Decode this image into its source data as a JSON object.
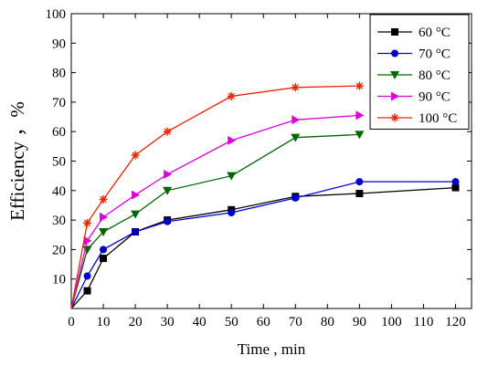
{
  "chart_data": {
    "type": "line",
    "xlabel": "Time , min",
    "ylabel": "Efficiency ，%",
    "xlim": [
      0,
      125
    ],
    "ylim": [
      0,
      100
    ],
    "x_ticks": [
      0,
      10,
      20,
      30,
      40,
      50,
      60,
      70,
      80,
      90,
      100,
      110,
      120
    ],
    "y_ticks": [
      10,
      20,
      30,
      40,
      50,
      60,
      70,
      80,
      90,
      100
    ],
    "origin_label": "0",
    "grid": false,
    "legend_position": "top-right",
    "series": [
      {
        "name": "60 °C",
        "color": "#000000",
        "marker": "square",
        "x": [
          0,
          5,
          10,
          20,
          30,
          50,
          70,
          90,
          120
        ],
        "y": [
          0,
          6,
          17,
          26,
          30,
          33.5,
          38,
          39,
          41
        ]
      },
      {
        "name": "70 °C",
        "color": "#0000cc",
        "marker": "circle",
        "x": [
          0,
          5,
          10,
          20,
          30,
          50,
          70,
          90,
          120
        ],
        "y": [
          0,
          11,
          20,
          26,
          29.5,
          32.5,
          37.5,
          43,
          43
        ]
      },
      {
        "name": "80 °C",
        "color": "#006600",
        "marker": "triangle-down",
        "x": [
          0,
          5,
          10,
          20,
          30,
          50,
          70,
          90
        ],
        "y": [
          0,
          20,
          26,
          32,
          40,
          45,
          58,
          59
        ]
      },
      {
        "name": "90 °C",
        "color": "#dd00dd",
        "marker": "triangle-right",
        "x": [
          0,
          5,
          10,
          20,
          30,
          50,
          70,
          90
        ],
        "y": [
          0,
          23,
          31,
          38.5,
          45.5,
          57,
          64,
          65.5
        ]
      },
      {
        "name": "100 °C",
        "color": "#ee2200",
        "marker": "asterisk",
        "x": [
          0,
          5,
          10,
          20,
          30,
          50,
          70,
          90
        ],
        "y": [
          0,
          29,
          37,
          52,
          60,
          72,
          75,
          75.5
        ]
      }
    ]
  }
}
